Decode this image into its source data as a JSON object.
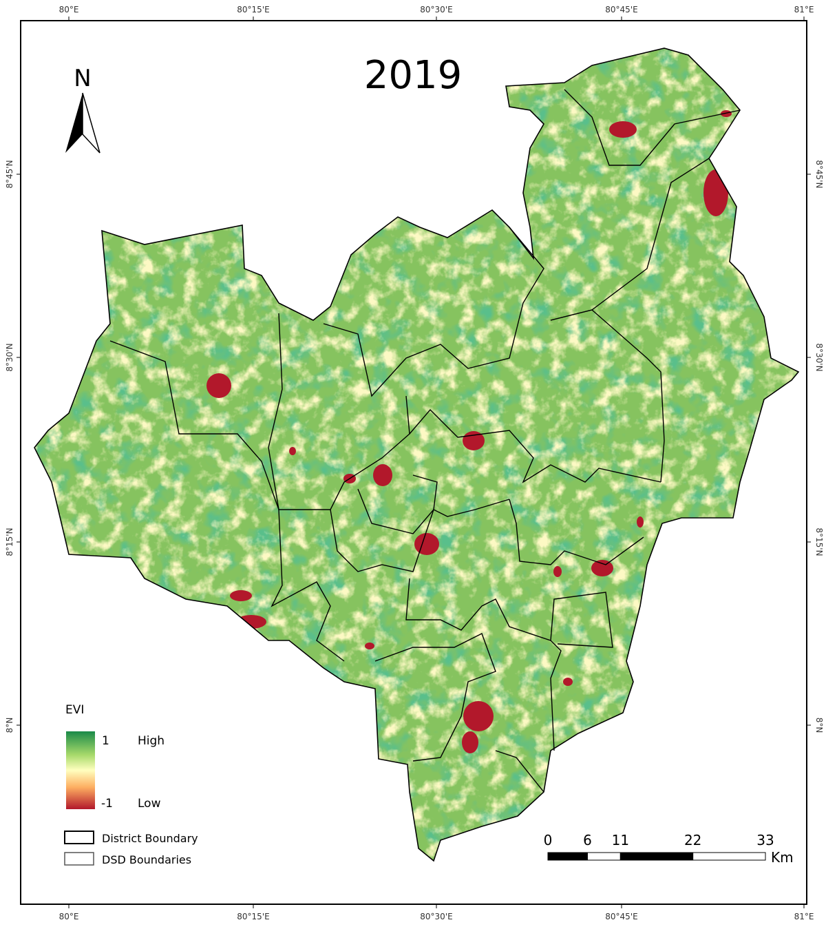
{
  "title": "2019",
  "north_arrow": "N",
  "graticule": {
    "longitudes": [
      "80°E",
      "80°15'E",
      "80°30'E",
      "80°45'E",
      "81°E"
    ],
    "latitudes": [
      "8°45'N",
      "8°30'N",
      "8°15'N",
      "8°N"
    ]
  },
  "legend": {
    "title": "EVI",
    "max": 1,
    "max_label": "High",
    "min": -1,
    "min_label": "Low",
    "boundaries": [
      "District Boundary",
      "DSD Boundaries"
    ]
  },
  "scale_bar": {
    "ticks": [
      0,
      6,
      11,
      22,
      33
    ],
    "unit": "Km"
  }
}
